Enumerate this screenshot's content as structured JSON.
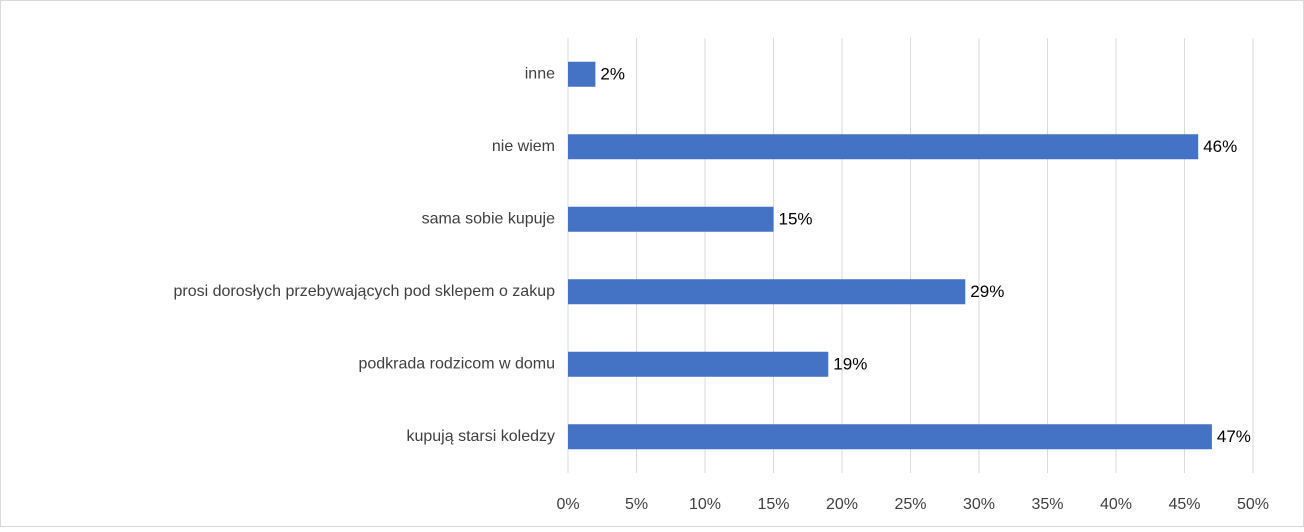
{
  "chart_data": {
    "type": "barh",
    "categories": [
      "inne",
      "nie wiem",
      "sama sobie kupuje",
      "prosi dorosłych przebywających pod sklepem o zakup",
      "podkrada rodzicom w domu",
      "kupują starsi koledzy"
    ],
    "values": [
      2,
      46,
      15,
      29,
      19,
      47
    ],
    "value_labels": [
      "2%",
      "46%",
      "15%",
      "29%",
      "19%",
      "47%"
    ],
    "color": "#4472c4",
    "xlim": [
      0,
      50
    ],
    "xticks": [
      {
        "value": 0,
        "label": "0%"
      },
      {
        "value": 5,
        "label": "5%"
      },
      {
        "value": 10,
        "label": "10%"
      },
      {
        "value": 15,
        "label": "15%"
      },
      {
        "value": 20,
        "label": "20%"
      },
      {
        "value": 25,
        "label": "25%"
      },
      {
        "value": 30,
        "label": "30%"
      },
      {
        "value": 35,
        "label": "35%"
      },
      {
        "value": 40,
        "label": "40%"
      },
      {
        "value": 45,
        "label": "45%"
      },
      {
        "value": 50,
        "label": "50%"
      }
    ],
    "grid": true
  }
}
